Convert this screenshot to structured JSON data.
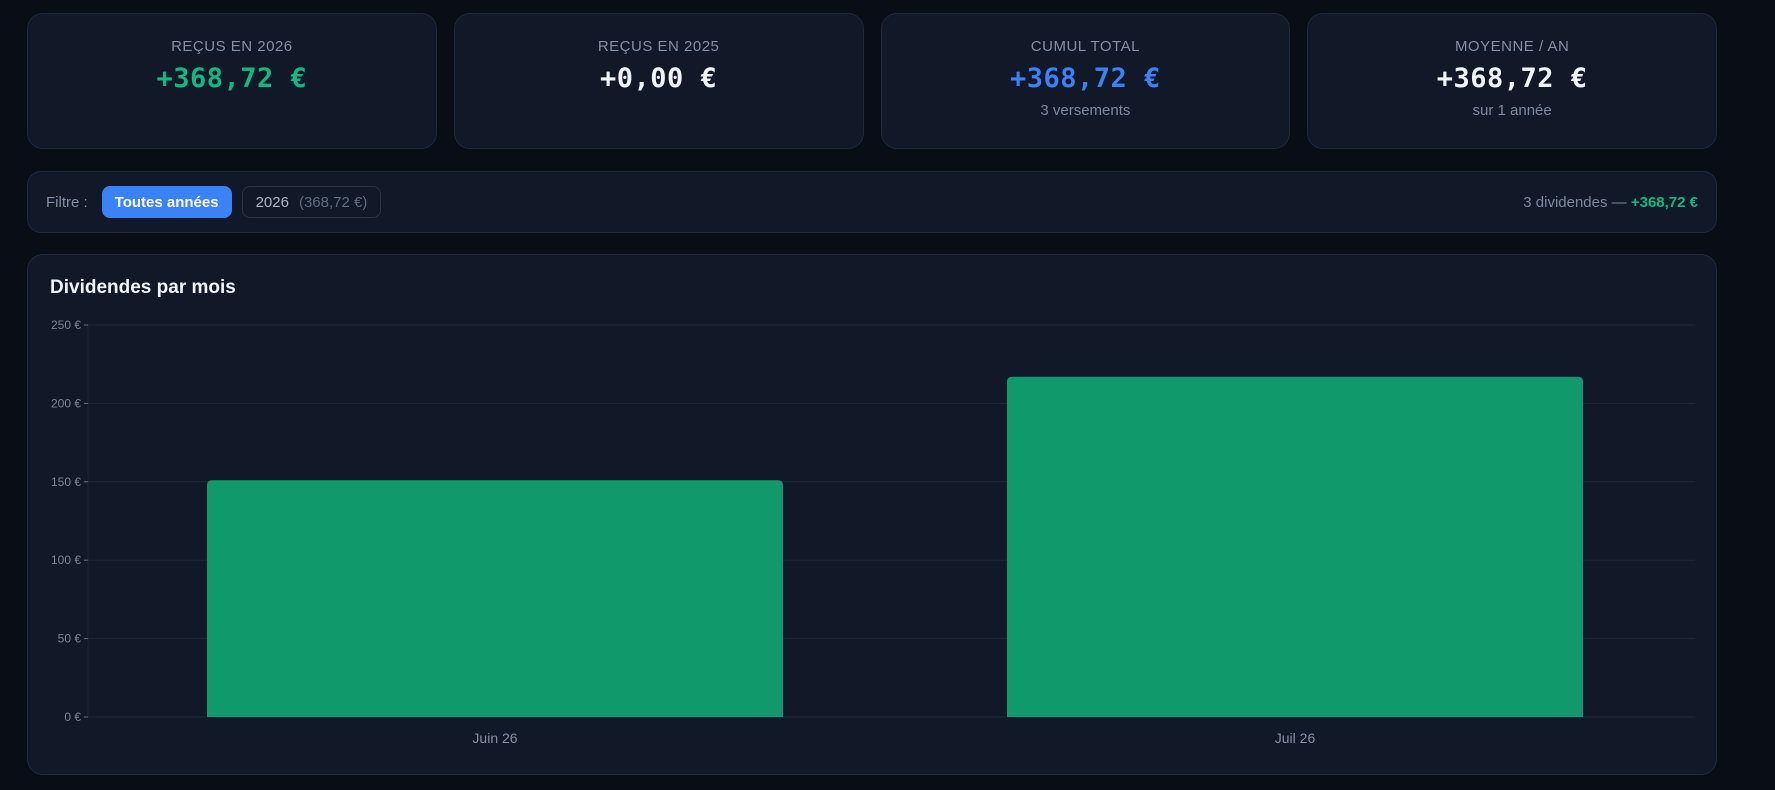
{
  "stats": [
    {
      "label": "REÇUS EN 2026",
      "value": "+368,72 €",
      "sub": "",
      "color": "#10b981"
    },
    {
      "label": "REÇUS EN 2025",
      "value": "+0,00 €",
      "sub": "",
      "color": "#f1f5f9"
    },
    {
      "label": "CUMUL TOTAL",
      "value": "+368,72 €",
      "sub": "3 versements",
      "color": "#3b82f6"
    },
    {
      "label": "MOYENNE / AN",
      "value": "+368,72 €",
      "sub": "sur 1 année",
      "color": "#f1f5f9"
    }
  ],
  "filter": {
    "label": "Filtre :",
    "all_label": "Toutes années",
    "year_label": "2026",
    "year_amount": "(368,72 €)",
    "summary_prefix": "3 dividendes —",
    "summary_amount": "+368,72 €"
  },
  "chart": {
    "title": "Dividendes par mois"
  },
  "chart_data": {
    "type": "bar",
    "title": "Dividendes par mois",
    "categories": [
      "Juin 26",
      "Juil 26"
    ],
    "values": [
      151,
      217
    ],
    "ylim": [
      0,
      250
    ],
    "yticks": [
      0,
      50,
      100,
      150,
      200,
      250
    ],
    "ytick_labels": [
      "0 €",
      "50 €",
      "100 €",
      "150 €",
      "200 €",
      "250 €"
    ],
    "grid": true,
    "bar_color": "#10996b"
  }
}
